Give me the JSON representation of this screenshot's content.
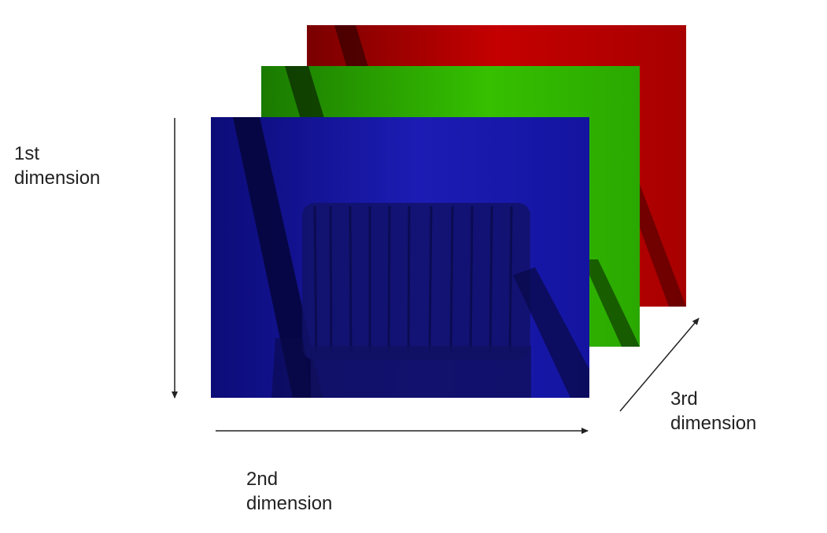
{
  "labels": {
    "dimension_1": {
      "line1": "1st",
      "line2": "dimension"
    },
    "dimension_2": {
      "line1": "2nd",
      "line2": "dimension"
    },
    "dimension_3": {
      "line1": "3rd",
      "line2": "dimension"
    }
  },
  "channels": [
    {
      "name": "red-channel",
      "color": "#b00000"
    },
    {
      "name": "green-channel",
      "color": "#22b000"
    },
    {
      "name": "blue-channel",
      "color": "#1a18b0"
    }
  ],
  "colors": {
    "arrow": "#222222",
    "text": "#222222",
    "background": "#ffffff"
  }
}
